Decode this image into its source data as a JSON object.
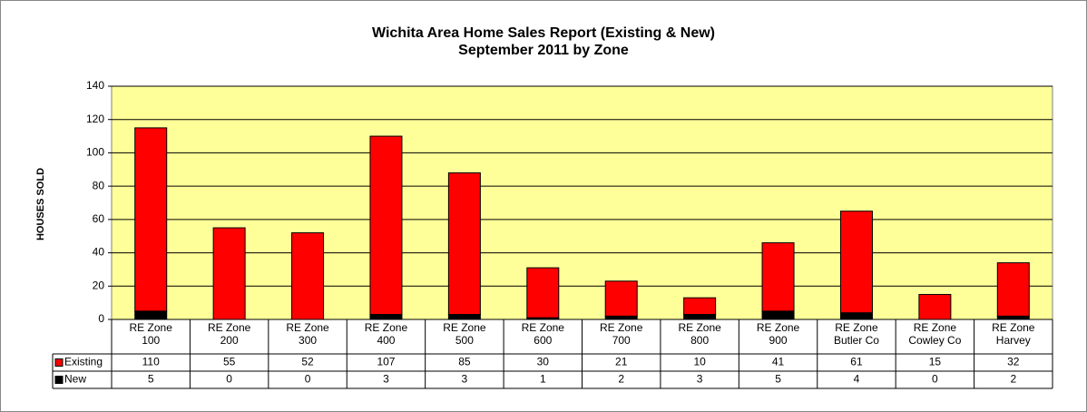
{
  "chart_data": {
    "type": "stacked_bar",
    "title": [
      "Wichita Area Home Sales Report (Existing & New)",
      "September 2011 by Zone"
    ],
    "y_label": "HOUSES SOLD",
    "categories": [
      [
        "RE Zone",
        "100"
      ],
      [
        "RE Zone",
        "200"
      ],
      [
        "RE Zone",
        "300"
      ],
      [
        "RE Zone",
        "400"
      ],
      [
        "RE Zone",
        "500"
      ],
      [
        "RE Zone",
        "600"
      ],
      [
        "RE Zone",
        "700"
      ],
      [
        "RE Zone",
        "800"
      ],
      [
        "RE Zone",
        "900"
      ],
      [
        "RE Zone",
        "Butler Co"
      ],
      [
        "RE Zone",
        "Cowley Co"
      ],
      [
        "RE Zone",
        "Harvey"
      ]
    ],
    "series": [
      {
        "name": "Existing",
        "color": "#ff0000",
        "values": [
          110,
          55,
          52,
          107,
          85,
          30,
          21,
          10,
          41,
          61,
          15,
          32
        ]
      },
      {
        "name": "New",
        "color": "#000000",
        "values": [
          5,
          0,
          0,
          3,
          3,
          1,
          2,
          3,
          5,
          4,
          0,
          2
        ]
      }
    ],
    "ylim": [
      0,
      140
    ],
    "yticks": [
      0,
      20,
      40,
      60,
      80,
      100,
      120,
      140
    ],
    "grid": true
  }
}
